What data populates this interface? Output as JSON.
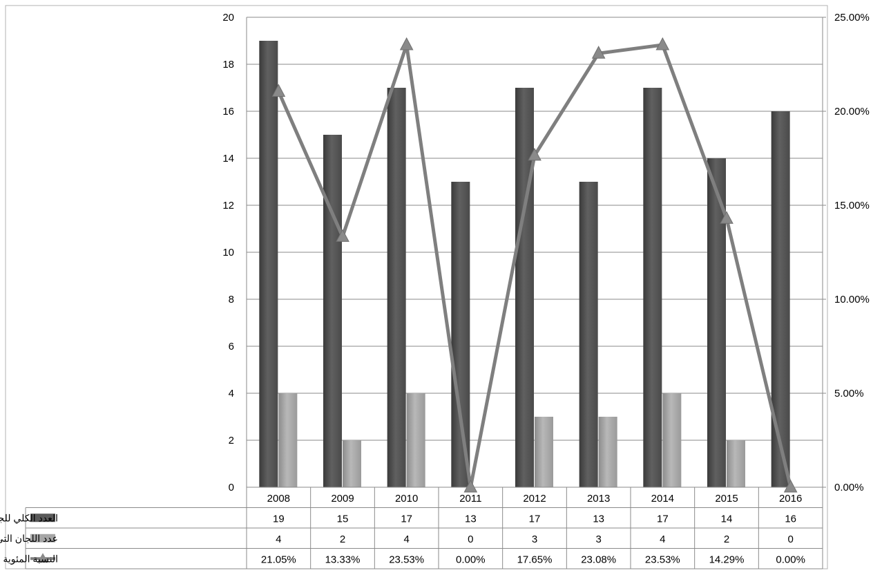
{
  "chart_data": {
    "type": "bar",
    "categories": [
      "2008",
      "2009",
      "2010",
      "2011",
      "2012",
      "2013",
      "2014",
      "2015",
      "2016"
    ],
    "series": [
      {
        "name": "العدد الكلي للجان التي عقدت",
        "kind": "bar",
        "axis": "left",
        "color": "#595959",
        "values": [
          19,
          15,
          17,
          13,
          17,
          13,
          17,
          14,
          16
        ]
      },
      {
        "name": "عدد اللجان التي استضيفت بصورة مشتركة",
        "kind": "bar",
        "axis": "left",
        "color": "#a6a6a6",
        "values": [
          4,
          2,
          4,
          0,
          3,
          3,
          4,
          2,
          0
        ]
      },
      {
        "name": "النسبة المئوية",
        "kind": "line",
        "axis": "right",
        "color": "#7f7f7f",
        "values": [
          21.05,
          13.33,
          23.53,
          0.0,
          17.65,
          23.08,
          23.53,
          14.29,
          0.0
        ],
        "labels": [
          "21.05%",
          "13.33%",
          "23.53%",
          "0.00%",
          "17.65%",
          "23.08%",
          "23.53%",
          "14.29%",
          "0.00%"
        ]
      }
    ],
    "table_rows": [
      [
        "19",
        "15",
        "17",
        "13",
        "17",
        "13",
        "17",
        "14",
        "16"
      ],
      [
        "4",
        "2",
        "4",
        "0",
        "3",
        "3",
        "4",
        "2",
        "0"
      ],
      [
        "21.05%",
        "13.33%",
        "23.53%",
        "0.00%",
        "17.65%",
        "23.08%",
        "23.53%",
        "14.29%",
        "0.00%"
      ]
    ],
    "y_left": {
      "min": 0,
      "max": 20,
      "ticks": [
        "0",
        "2",
        "4",
        "6",
        "8",
        "10",
        "12",
        "14",
        "16",
        "18",
        "20"
      ]
    },
    "y_right": {
      "min": 0,
      "max": 25,
      "ticks": [
        "0.00%",
        "5.00%",
        "10.00%",
        "15.00%",
        "20.00%",
        "25.00%"
      ]
    },
    "grid": true,
    "legend": "data-table"
  }
}
